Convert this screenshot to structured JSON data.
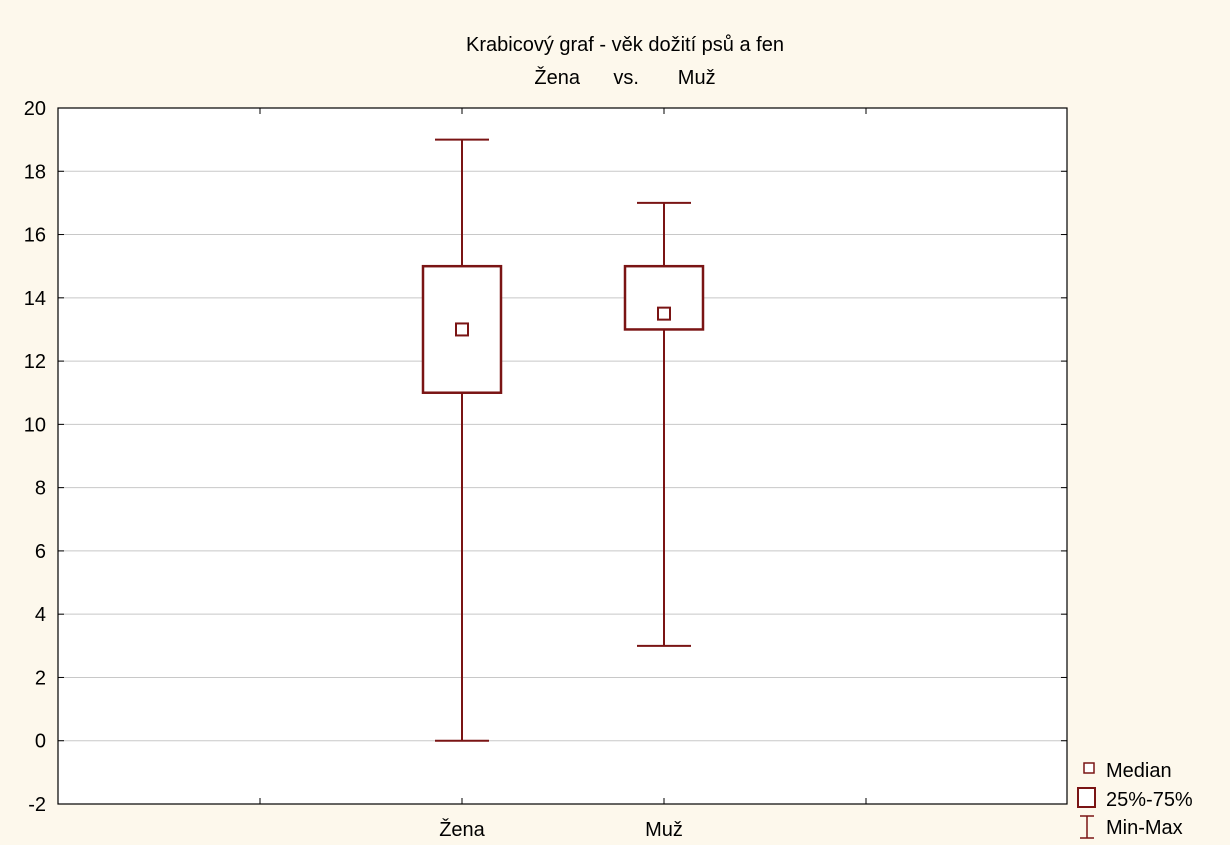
{
  "chart_data": {
    "type": "boxplot",
    "title": "Krabicový graf - věk dožití psů a fen",
    "subtitle": "Žena      vs.       Muž",
    "ylim": [
      -2,
      20
    ],
    "yticks": [
      -2,
      0,
      2,
      4,
      6,
      8,
      10,
      12,
      14,
      16,
      18,
      20
    ],
    "grid": true,
    "categories": [
      "Žena",
      "Muž"
    ],
    "boxes": [
      {
        "category": "Žena",
        "min": 0,
        "q1": 11,
        "median": 13,
        "q3": 15,
        "max": 19
      },
      {
        "category": "Muž",
        "min": 3,
        "q1": 13,
        "median": 13.5,
        "q3": 15,
        "max": 17
      }
    ],
    "legend": {
      "position": "bottom-right",
      "items": [
        "Median",
        "25%-75%",
        "Min-Max"
      ]
    },
    "colors": {
      "series": "#7a1414",
      "background": "#fdf8ec",
      "plot": "#ffffff",
      "grid": "#c8c8c8"
    }
  }
}
